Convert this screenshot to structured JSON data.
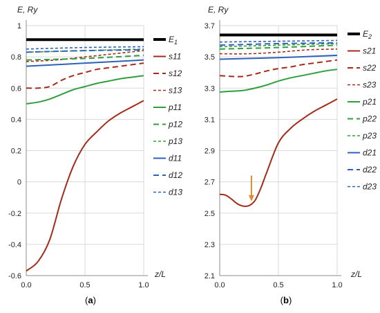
{
  "chart_data": [
    {
      "type": "line",
      "panel_label": "(a)",
      "ylabel": "E, Ry",
      "xlabel": "z/L",
      "xlim": [
        0,
        1
      ],
      "ylim": [
        -0.6,
        1.0
      ],
      "xticks": [
        "0.0",
        "0.5",
        "1.0"
      ],
      "yticks": [
        "-0.6",
        "-0.4",
        "-0.2",
        "0",
        "0.2",
        "0.4",
        "0.6",
        "0.8",
        "1"
      ],
      "legend_position": "right",
      "series": [
        {
          "name": "E1",
          "color": "#000000",
          "style": "thick-solid",
          "x": [
            0,
            1
          ],
          "y": [
            0.91,
            0.91
          ]
        },
        {
          "name": "s11",
          "color": "#a52a1a",
          "style": "solid",
          "x": [
            0,
            0.1,
            0.2,
            0.3,
            0.4,
            0.5,
            0.6,
            0.7,
            0.8,
            0.9,
            1.0
          ],
          "y": [
            -0.57,
            -0.51,
            -0.37,
            -0.11,
            0.1,
            0.24,
            0.32,
            0.39,
            0.44,
            0.48,
            0.52
          ]
        },
        {
          "name": "s12",
          "color": "#a52a1a",
          "style": "dash",
          "x": [
            0,
            0.1,
            0.2,
            0.3,
            0.4,
            0.5,
            0.6,
            0.7,
            0.8,
            0.9,
            1.0
          ],
          "y": [
            0.6,
            0.6,
            0.61,
            0.65,
            0.68,
            0.7,
            0.72,
            0.73,
            0.74,
            0.75,
            0.76
          ]
        },
        {
          "name": "s13",
          "color": "#a52a1a",
          "style": "short-dash",
          "x": [
            0,
            0.25,
            0.5,
            0.75,
            1.0
          ],
          "y": [
            0.77,
            0.78,
            0.8,
            0.82,
            0.84
          ]
        },
        {
          "name": "p11",
          "color": "#2e9e3e",
          "style": "solid",
          "x": [
            0,
            0.1,
            0.2,
            0.3,
            0.4,
            0.5,
            0.6,
            0.7,
            0.8,
            0.9,
            1.0
          ],
          "y": [
            0.5,
            0.51,
            0.53,
            0.56,
            0.59,
            0.61,
            0.63,
            0.645,
            0.66,
            0.67,
            0.68
          ]
        },
        {
          "name": "p12",
          "color": "#2e9e3e",
          "style": "dash",
          "x": [
            0,
            0.5,
            1.0
          ],
          "y": [
            0.78,
            0.79,
            0.81
          ]
        },
        {
          "name": "p13",
          "color": "#2e9e3e",
          "style": "short-dash",
          "x": [
            0,
            0.5,
            1.0
          ],
          "y": [
            0.83,
            0.84,
            0.85
          ]
        },
        {
          "name": "d11",
          "color": "#2e62b8",
          "style": "solid",
          "x": [
            0,
            0.5,
            1.0
          ],
          "y": [
            0.74,
            0.76,
            0.78
          ]
        },
        {
          "name": "d12",
          "color": "#2e62b8",
          "style": "dash",
          "x": [
            0,
            0.5,
            1.0
          ],
          "y": [
            0.83,
            0.84,
            0.845
          ]
        },
        {
          "name": "d13",
          "color": "#2e62b8",
          "style": "short-dash",
          "x": [
            0,
            0.5,
            1.0
          ],
          "y": [
            0.85,
            0.86,
            0.865
          ]
        }
      ]
    },
    {
      "type": "line",
      "panel_label": "(b)",
      "ylabel": "E, Ry",
      "xlabel": "z/L",
      "xlim": [
        0,
        1
      ],
      "ylim": [
        2.1,
        3.7
      ],
      "xticks": [
        "0.0",
        "0.5",
        "1.0"
      ],
      "yticks": [
        "2.1",
        "2.3",
        "2.5",
        "2.7",
        "2.9",
        "3.1",
        "3.3",
        "3.5",
        "3.7"
      ],
      "legend_position": "right",
      "annotations": [
        {
          "type": "arrow",
          "color": "#e08a2a",
          "at_x": 0.27,
          "pointing": "down",
          "from_y": 2.74,
          "to_y": 2.58
        }
      ],
      "series": [
        {
          "name": "E2",
          "color": "#000000",
          "style": "thick-solid",
          "x": [
            0,
            1
          ],
          "y": [
            3.64,
            3.64
          ]
        },
        {
          "name": "s21",
          "color": "#a52a1a",
          "style": "solid",
          "x": [
            0,
            0.05,
            0.1,
            0.15,
            0.2,
            0.25,
            0.3,
            0.35,
            0.4,
            0.5,
            0.6,
            0.7,
            0.8,
            0.9,
            1.0
          ],
          "y": [
            2.62,
            2.615,
            2.59,
            2.56,
            2.545,
            2.548,
            2.58,
            2.66,
            2.76,
            2.95,
            3.04,
            3.1,
            3.15,
            3.19,
            3.23
          ]
        },
        {
          "name": "s22",
          "color": "#a52a1a",
          "style": "dash",
          "x": [
            0,
            0.1,
            0.2,
            0.3,
            0.4,
            0.5,
            0.6,
            0.7,
            0.8,
            0.9,
            1.0
          ],
          "y": [
            3.38,
            3.375,
            3.375,
            3.39,
            3.41,
            3.425,
            3.435,
            3.45,
            3.46,
            3.47,
            3.48
          ]
        },
        {
          "name": "s23",
          "color": "#a52a1a",
          "style": "short-dash",
          "x": [
            0,
            0.25,
            0.5,
            0.75,
            1.0
          ],
          "y": [
            3.52,
            3.52,
            3.53,
            3.545,
            3.55
          ]
        },
        {
          "name": "p21",
          "color": "#2e9e3e",
          "style": "solid",
          "x": [
            0,
            0.1,
            0.2,
            0.3,
            0.4,
            0.5,
            0.6,
            0.7,
            0.8,
            0.9,
            1.0
          ],
          "y": [
            3.275,
            3.28,
            3.285,
            3.3,
            3.32,
            3.345,
            3.365,
            3.38,
            3.395,
            3.41,
            3.42
          ]
        },
        {
          "name": "p22",
          "color": "#2e9e3e",
          "style": "dash",
          "x": [
            0,
            0.5,
            1.0
          ],
          "y": [
            3.55,
            3.56,
            3.575
          ]
        },
        {
          "name": "p23",
          "color": "#2e9e3e",
          "style": "short-dash",
          "x": [
            0,
            0.5,
            1.0
          ],
          "y": [
            3.565,
            3.575,
            3.585
          ]
        },
        {
          "name": "d21",
          "color": "#2e62b8",
          "style": "solid",
          "x": [
            0,
            0.5,
            1.0
          ],
          "y": [
            3.485,
            3.495,
            3.51
          ]
        },
        {
          "name": "d22",
          "color": "#2e62b8",
          "style": "dash",
          "x": [
            0,
            0.5,
            1.0
          ],
          "y": [
            3.575,
            3.585,
            3.59
          ]
        },
        {
          "name": "d23",
          "color": "#2e62b8",
          "style": "short-dash",
          "x": [
            0,
            0.5,
            1.0
          ],
          "y": [
            3.595,
            3.6,
            3.605
          ]
        }
      ]
    }
  ]
}
